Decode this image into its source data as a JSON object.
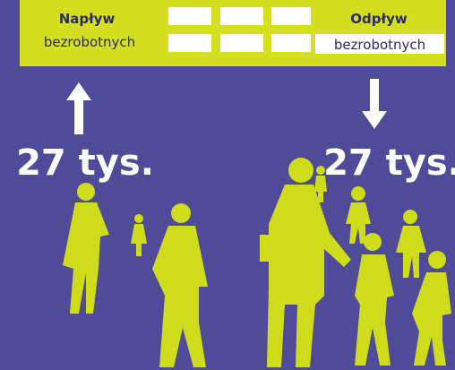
{
  "inflow": {
    "title": "Napływ",
    "subtitle": "bezrobotnych",
    "value": "27 tys."
  },
  "outflow": {
    "title": "Odpływ",
    "subtitle": "bezrobotnych",
    "value": "27 tys."
  }
}
